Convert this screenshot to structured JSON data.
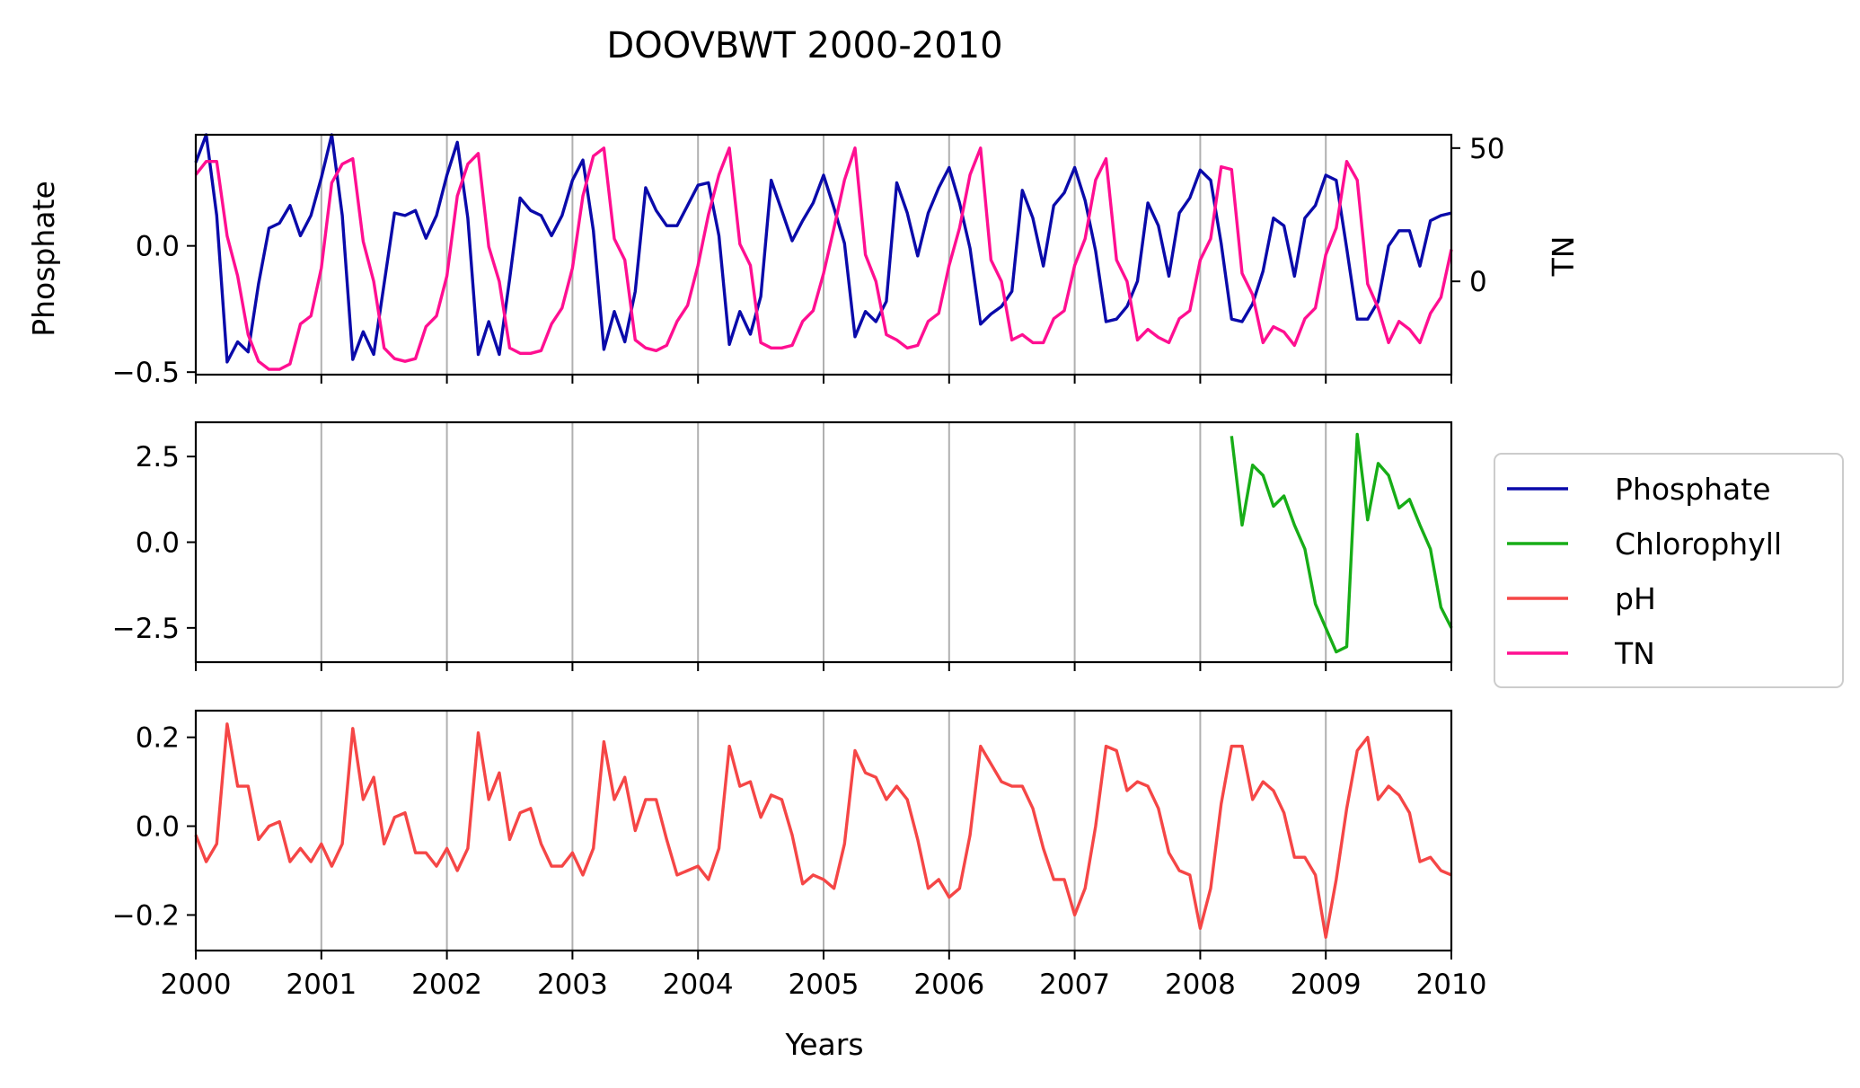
{
  "colors": {
    "phosphate": "#0a0aaa",
    "chlorophyll": "#17ad17",
    "ph": "#f54646",
    "tn": "#ff0f91",
    "grid": "#b0b0b0"
  },
  "chart_data": {
    "title": "DOOVBWT 2000-2010",
    "type": "line",
    "xlabel": "Years",
    "xlim": [
      2000,
      2010
    ],
    "xticks": [
      "2000",
      "2001",
      "2002",
      "2003",
      "2004",
      "2005",
      "2006",
      "2007",
      "2008",
      "2009",
      "2010"
    ],
    "grid": "vertical lines at yearly ticks",
    "legend": {
      "placement": "right of middle panel",
      "entries": [
        "Phosphate",
        "Chlorophyll",
        "pH",
        "TN"
      ]
    },
    "panels": [
      {
        "ylabel": "Phosphate",
        "ylim": [
          -0.51,
          0.44
        ],
        "yticks": [
          "0.0",
          "−0.5"
        ],
        "ytick_values": [
          0.0,
          -0.5
        ],
        "right_axis": {
          "ylabel": "TN",
          "ylim": [
            -35,
            55
          ],
          "yticks": [
            "50",
            "0"
          ],
          "ytick_values": [
            50,
            0
          ]
        },
        "series": [
          {
            "name": "Phosphate",
            "color_key": "phosphate",
            "x": [
              2000.0,
              2000.083,
              2000.167,
              2000.25,
              2000.333,
              2000.417,
              2000.5,
              2000.583,
              2000.667,
              2000.75,
              2000.833,
              2000.917,
              2001.0,
              2001.083,
              2001.167,
              2001.25,
              2001.333,
              2001.417,
              2001.5,
              2001.583,
              2001.667,
              2001.75,
              2001.833,
              2001.917,
              2002.0,
              2002.083,
              2002.167,
              2002.25,
              2002.333,
              2002.417,
              2002.5,
              2002.583,
              2002.667,
              2002.75,
              2002.833,
              2002.917,
              2003.0,
              2003.083,
              2003.167,
              2003.25,
              2003.333,
              2003.417,
              2003.5,
              2003.583,
              2003.667,
              2003.75,
              2003.833,
              2003.917,
              2004.0,
              2004.083,
              2004.167,
              2004.25,
              2004.333,
              2004.417,
              2004.5,
              2004.583,
              2004.667,
              2004.75,
              2004.833,
              2004.917,
              2005.0,
              2005.083,
              2005.167,
              2005.25,
              2005.333,
              2005.417,
              2005.5,
              2005.583,
              2005.667,
              2005.75,
              2005.833,
              2005.917,
              2006.0,
              2006.083,
              2006.167,
              2006.25,
              2006.333,
              2006.417,
              2006.5,
              2006.583,
              2006.667,
              2006.75,
              2006.833,
              2006.917,
              2007.0,
              2007.083,
              2007.167,
              2007.25,
              2007.333,
              2007.417,
              2007.5,
              2007.583,
              2007.667,
              2007.75,
              2007.833,
              2007.917,
              2008.0,
              2008.083,
              2008.167,
              2008.25,
              2008.333,
              2008.417,
              2008.5,
              2008.583,
              2008.667,
              2008.75,
              2008.833,
              2008.917,
              2009.0,
              2009.083,
              2009.167,
              2009.25,
              2009.333,
              2009.417,
              2009.5,
              2009.583,
              2009.667,
              2009.75,
              2009.833,
              2009.917,
              2010.0
            ],
            "y": [
              0.33,
              0.44,
              0.12,
              -0.46,
              -0.38,
              -0.42,
              -0.15,
              0.07,
              0.09,
              0.16,
              0.04,
              0.12,
              0.27,
              0.44,
              0.12,
              -0.45,
              -0.34,
              -0.43,
              -0.15,
              0.13,
              0.12,
              0.14,
              0.03,
              0.12,
              0.28,
              0.41,
              0.11,
              -0.43,
              -0.3,
              -0.43,
              -0.13,
              0.19,
              0.14,
              0.12,
              0.04,
              0.12,
              0.26,
              0.34,
              0.06,
              -0.41,
              -0.26,
              -0.38,
              -0.18,
              0.23,
              0.14,
              0.08,
              0.08,
              0.16,
              0.24,
              0.25,
              0.04,
              -0.39,
              -0.26,
              -0.35,
              -0.2,
              0.26,
              0.14,
              0.02,
              0.1,
              0.17,
              0.28,
              0.15,
              0.01,
              -0.36,
              -0.26,
              -0.3,
              -0.22,
              0.25,
              0.13,
              -0.04,
              0.13,
              0.23,
              0.31,
              0.17,
              -0.01,
              -0.31,
              -0.27,
              -0.24,
              -0.18,
              0.22,
              0.11,
              -0.08,
              0.16,
              0.21,
              0.31,
              0.18,
              -0.02,
              -0.3,
              -0.29,
              -0.24,
              -0.14,
              0.17,
              0.08,
              -0.12,
              0.13,
              0.19,
              0.3,
              0.26,
              0.01,
              -0.29,
              -0.3,
              -0.23,
              -0.1,
              0.11,
              0.08,
              -0.12,
              0.11,
              0.16,
              0.28,
              0.26,
              -0.01,
              -0.29,
              -0.29,
              -0.22,
              0.0,
              0.06,
              0.06,
              -0.08,
              0.1,
              0.12,
              0.13
            ]
          },
          {
            "name": "TN",
            "color_key": "tn",
            "axis": "right",
            "x": [
              2000.0,
              2000.083,
              2000.167,
              2000.25,
              2000.333,
              2000.417,
              2000.5,
              2000.583,
              2000.667,
              2000.75,
              2000.833,
              2000.917,
              2001.0,
              2001.083,
              2001.167,
              2001.25,
              2001.333,
              2001.417,
              2001.5,
              2001.583,
              2001.667,
              2001.75,
              2001.833,
              2001.917,
              2002.0,
              2002.083,
              2002.167,
              2002.25,
              2002.333,
              2002.417,
              2002.5,
              2002.583,
              2002.667,
              2002.75,
              2002.833,
              2002.917,
              2003.0,
              2003.083,
              2003.167,
              2003.25,
              2003.333,
              2003.417,
              2003.5,
              2003.583,
              2003.667,
              2003.75,
              2003.833,
              2003.917,
              2004.0,
              2004.083,
              2004.167,
              2004.25,
              2004.333,
              2004.417,
              2004.5,
              2004.583,
              2004.667,
              2004.75,
              2004.833,
              2004.917,
              2005.0,
              2005.083,
              2005.167,
              2005.25,
              2005.333,
              2005.417,
              2005.5,
              2005.583,
              2005.667,
              2005.75,
              2005.833,
              2005.917,
              2006.0,
              2006.083,
              2006.167,
              2006.25,
              2006.333,
              2006.417,
              2006.5,
              2006.583,
              2006.667,
              2006.75,
              2006.833,
              2006.917,
              2007.0,
              2007.083,
              2007.167,
              2007.25,
              2007.333,
              2007.417,
              2007.5,
              2007.583,
              2007.667,
              2007.75,
              2007.833,
              2007.917,
              2008.0,
              2008.083,
              2008.167,
              2008.25,
              2008.333,
              2008.417,
              2008.5,
              2008.583,
              2008.667,
              2008.75,
              2008.833,
              2008.917,
              2009.0,
              2009.083,
              2009.167,
              2009.25,
              2009.333,
              2009.417,
              2009.5,
              2009.583,
              2009.667,
              2009.75,
              2009.833,
              2009.917,
              2010.0
            ],
            "y": [
              40,
              45,
              45,
              17,
              2,
              -20,
              -30,
              -33,
              -33,
              -31,
              -16,
              -13,
              5,
              37,
              44,
              46,
              15,
              0,
              -25,
              -29,
              -30,
              -29,
              -17,
              -13,
              2,
              32,
              44,
              48,
              13,
              0,
              -25,
              -27,
              -27,
              -26,
              -16,
              -10,
              5,
              32,
              47,
              50,
              16,
              8,
              -22,
              -25,
              -26,
              -24,
              -15,
              -9,
              6,
              25,
              40,
              50,
              14,
              6,
              -23,
              -25,
              -25,
              -24,
              -15,
              -11,
              3,
              20,
              38,
              50,
              10,
              0,
              -20,
              -22,
              -25,
              -24,
              -15,
              -12,
              6,
              20,
              40,
              50,
              8,
              0,
              -22,
              -20,
              -23,
              -23,
              -14,
              -11,
              6,
              16,
              38,
              46,
              8,
              0,
              -22,
              -18,
              -21,
              -23,
              -14,
              -11,
              8,
              16,
              43,
              42,
              3,
              -5,
              -23,
              -17,
              -19,
              -24,
              -14,
              -10,
              10,
              20,
              45,
              38,
              -1,
              -10,
              -23,
              -15,
              -18,
              -23,
              -12,
              -6,
              12
            ]
          }
        ]
      },
      {
        "ylim": [
          -3.5,
          3.5
        ],
        "yticks": [
          "2.5",
          "0.0",
          "−2.5"
        ],
        "ytick_values": [
          2.5,
          0.0,
          -2.5
        ],
        "series": [
          {
            "name": "Chlorophyll",
            "color_key": "chlorophyll",
            "x": [
              2008.25,
              2008.333,
              2008.417,
              2008.5,
              2008.583,
              2008.667,
              2008.75,
              2008.833,
              2008.917,
              2009.0,
              2009.083,
              2009.167,
              2009.25,
              2009.333,
              2009.417,
              2009.5,
              2009.583,
              2009.667,
              2009.75,
              2009.833,
              2009.917,
              2010.0
            ],
            "y": [
              3.1,
              0.5,
              2.25,
              1.95,
              1.05,
              1.35,
              0.5,
              -0.2,
              -1.8,
              -2.5,
              -3.2,
              -3.05,
              3.15,
              0.65,
              2.3,
              1.95,
              1.0,
              1.25,
              0.5,
              -0.2,
              -1.9,
              -2.5
            ]
          }
        ]
      },
      {
        "ylim": [
          -0.28,
          0.26
        ],
        "yticks": [
          "0.2",
          "0.0",
          "−0.2"
        ],
        "ytick_values": [
          0.2,
          0.0,
          -0.2
        ],
        "series": [
          {
            "name": "pH",
            "color_key": "ph",
            "x": [
              2000.0,
              2000.083,
              2000.167,
              2000.25,
              2000.333,
              2000.417,
              2000.5,
              2000.583,
              2000.667,
              2000.75,
              2000.833,
              2000.917,
              2001.0,
              2001.083,
              2001.167,
              2001.25,
              2001.333,
              2001.417,
              2001.5,
              2001.583,
              2001.667,
              2001.75,
              2001.833,
              2001.917,
              2002.0,
              2002.083,
              2002.167,
              2002.25,
              2002.333,
              2002.417,
              2002.5,
              2002.583,
              2002.667,
              2002.75,
              2002.833,
              2002.917,
              2003.0,
              2003.083,
              2003.167,
              2003.25,
              2003.333,
              2003.417,
              2003.5,
              2003.583,
              2003.667,
              2003.75,
              2003.833,
              2003.917,
              2004.0,
              2004.083,
              2004.167,
              2004.25,
              2004.333,
              2004.417,
              2004.5,
              2004.583,
              2004.667,
              2004.75,
              2004.833,
              2004.917,
              2005.0,
              2005.083,
              2005.167,
              2005.25,
              2005.333,
              2005.417,
              2005.5,
              2005.583,
              2005.667,
              2005.75,
              2005.833,
              2005.917,
              2006.0,
              2006.083,
              2006.167,
              2006.25,
              2006.333,
              2006.417,
              2006.5,
              2006.583,
              2006.667,
              2006.75,
              2006.833,
              2006.917,
              2007.0,
              2007.083,
              2007.167,
              2007.25,
              2007.333,
              2007.417,
              2007.5,
              2007.583,
              2007.667,
              2007.75,
              2007.833,
              2007.917,
              2008.0,
              2008.083,
              2008.167,
              2008.25,
              2008.333,
              2008.417,
              2008.5,
              2008.583,
              2008.667,
              2008.75,
              2008.833,
              2008.917,
              2009.0,
              2009.083,
              2009.167,
              2009.25,
              2009.333,
              2009.417,
              2009.5,
              2009.583,
              2009.667,
              2009.75,
              2009.833,
              2009.917,
              2010.0
            ],
            "y": [
              -0.02,
              -0.08,
              -0.04,
              0.23,
              0.09,
              0.09,
              -0.03,
              0.0,
              0.01,
              -0.08,
              -0.05,
              -0.08,
              -0.04,
              -0.09,
              -0.04,
              0.22,
              0.06,
              0.11,
              -0.04,
              0.02,
              0.03,
              -0.06,
              -0.06,
              -0.09,
              -0.05,
              -0.1,
              -0.05,
              0.21,
              0.06,
              0.12,
              -0.03,
              0.03,
              0.04,
              -0.04,
              -0.09,
              -0.09,
              -0.06,
              -0.11,
              -0.05,
              0.19,
              0.06,
              0.11,
              -0.01,
              0.06,
              0.06,
              -0.03,
              -0.11,
              -0.1,
              -0.09,
              -0.12,
              -0.05,
              0.18,
              0.09,
              0.1,
              0.02,
              0.07,
              0.06,
              -0.02,
              -0.13,
              -0.11,
              -0.12,
              -0.14,
              -0.04,
              0.17,
              0.12,
              0.11,
              0.06,
              0.09,
              0.06,
              -0.03,
              -0.14,
              -0.12,
              -0.16,
              -0.14,
              -0.02,
              0.18,
              0.14,
              0.1,
              0.09,
              0.09,
              0.04,
              -0.05,
              -0.12,
              -0.12,
              -0.2,
              -0.14,
              0.0,
              0.18,
              0.17,
              0.08,
              0.1,
              0.09,
              0.04,
              -0.06,
              -0.1,
              -0.11,
              -0.23,
              -0.14,
              0.05,
              0.18,
              0.18,
              0.06,
              0.1,
              0.08,
              0.03,
              -0.07,
              -0.07,
              -0.11,
              -0.25,
              -0.12,
              0.04,
              0.17,
              0.2,
              0.06,
              0.09,
              0.07,
              0.03,
              -0.08,
              -0.07,
              -0.1,
              -0.11
            ]
          }
        ]
      }
    ]
  }
}
